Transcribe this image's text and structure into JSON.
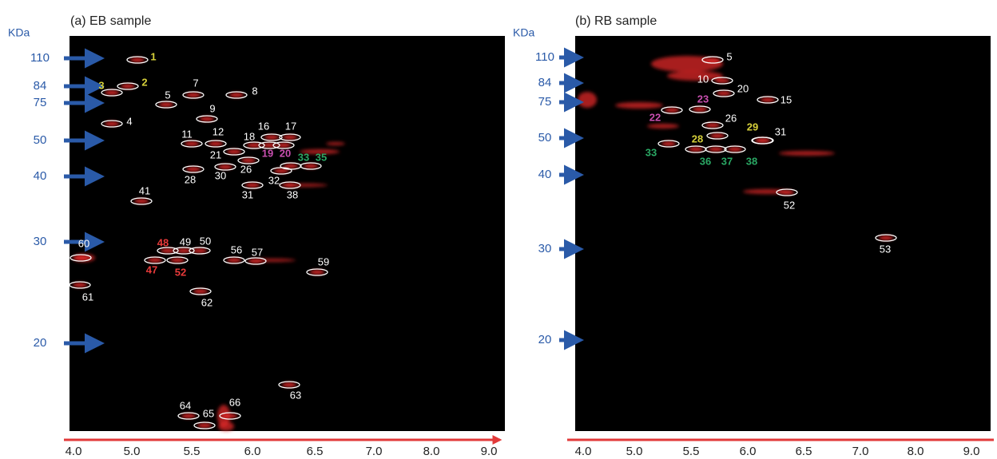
{
  "panels": [
    {
      "title": "(a) EB sample",
      "unit": "KDa",
      "mw_markers": [
        110,
        84,
        75,
        50,
        40,
        30,
        20
      ],
      "ph_ticks": [
        "4.0",
        "5.0",
        "5.5",
        "6.0",
        "6.5",
        "7.0",
        "8.0",
        "9.0"
      ],
      "spots": [
        {
          "label": "1",
          "color": "#d6d03a"
        },
        {
          "label": "2",
          "color": "#d6d03a"
        },
        {
          "label": "3",
          "color": "#d6d03a"
        },
        {
          "label": "4",
          "color": "#ffffff"
        },
        {
          "label": "5",
          "color": "#ffffff"
        },
        {
          "label": "7",
          "color": "#ffffff"
        },
        {
          "label": "8",
          "color": "#ffffff"
        },
        {
          "label": "9",
          "color": "#ffffff"
        },
        {
          "label": "11",
          "color": "#ffffff"
        },
        {
          "label": "12",
          "color": "#ffffff"
        },
        {
          "label": "16",
          "color": "#ffffff"
        },
        {
          "label": "17",
          "color": "#ffffff"
        },
        {
          "label": "18",
          "color": "#ffffff"
        },
        {
          "label": "19",
          "color": "#c94fb0"
        },
        {
          "label": "20",
          "color": "#c94fb0"
        },
        {
          "label": "21",
          "color": "#ffffff"
        },
        {
          "label": "26",
          "color": "#ffffff"
        },
        {
          "label": "28",
          "color": "#ffffff"
        },
        {
          "label": "30",
          "color": "#ffffff"
        },
        {
          "label": "31",
          "color": "#ffffff"
        },
        {
          "label": "32",
          "color": "#ffffff"
        },
        {
          "label": "33",
          "color": "#2aa864"
        },
        {
          "label": "35",
          "color": "#2aa864"
        },
        {
          "label": "38",
          "color": "#ffffff"
        },
        {
          "label": "41",
          "color": "#ffffff"
        },
        {
          "label": "48",
          "color": "#e83a3a"
        },
        {
          "label": "49",
          "color": "#ffffff"
        },
        {
          "label": "50",
          "color": "#ffffff"
        },
        {
          "label": "47",
          "color": "#e83a3a"
        },
        {
          "label": "52",
          "color": "#e83a3a"
        },
        {
          "label": "56",
          "color": "#ffffff"
        },
        {
          "label": "57",
          "color": "#ffffff"
        },
        {
          "label": "59",
          "color": "#ffffff"
        },
        {
          "label": "60",
          "color": "#ffffff"
        },
        {
          "label": "61",
          "color": "#ffffff"
        },
        {
          "label": "62",
          "color": "#ffffff"
        },
        {
          "label": "63",
          "color": "#ffffff"
        },
        {
          "label": "64",
          "color": "#ffffff"
        },
        {
          "label": "65",
          "color": "#ffffff"
        },
        {
          "label": "66",
          "color": "#ffffff"
        }
      ]
    },
    {
      "title": "(b) RB sample",
      "unit": "KDa",
      "mw_markers": [
        110,
        84,
        75,
        50,
        40,
        30,
        20
      ],
      "ph_ticks": [
        "4.0",
        "5.0",
        "5.5",
        "6.0",
        "6.5",
        "7.0",
        "8.0",
        "9.0"
      ],
      "spots": [
        {
          "label": "5",
          "color": "#ffffff"
        },
        {
          "label": "10",
          "color": "#ffffff"
        },
        {
          "label": "20",
          "color": "#ffffff"
        },
        {
          "label": "15",
          "color": "#ffffff"
        },
        {
          "label": "23",
          "color": "#c94fb0"
        },
        {
          "label": "22",
          "color": "#c94fb0"
        },
        {
          "label": "26",
          "color": "#ffffff"
        },
        {
          "label": "29",
          "color": "#d6d03a"
        },
        {
          "label": "31",
          "color": "#ffffff"
        },
        {
          "label": "28",
          "color": "#d6d03a"
        },
        {
          "label": "33",
          "color": "#2aa864"
        },
        {
          "label": "36",
          "color": "#2aa864"
        },
        {
          "label": "37",
          "color": "#2aa864"
        },
        {
          "label": "38",
          "color": "#2aa864"
        },
        {
          "label": "52",
          "color": "#ffffff"
        },
        {
          "label": "53",
          "color": "#ffffff"
        }
      ]
    }
  ]
}
